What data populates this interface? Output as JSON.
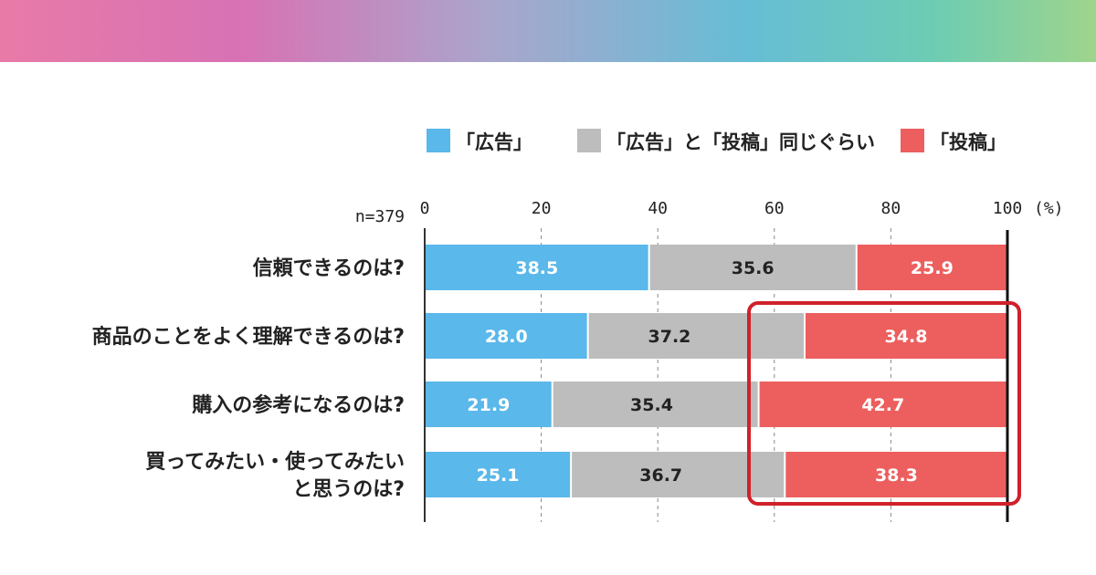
{
  "colors": {
    "ad": "#5ab8ea",
    "same": "#bdbdbd",
    "post": "#ec5f5e",
    "highlight": "#d0212a"
  },
  "legend": [
    "「広告」",
    "「広告」と「投稿」同じぐらい",
    "「投稿」"
  ],
  "chart_data": {
    "type": "bar",
    "orientation": "horizontal",
    "stacked": true,
    "sample_label": "n=379",
    "unit_label": "(%)",
    "xlim": [
      0,
      100
    ],
    "xticks": [
      0,
      20,
      40,
      60,
      80,
      100
    ],
    "categories": [
      [
        "信頼できるのは?"
      ],
      [
        "商品のことをよく理解できるのは?"
      ],
      [
        "購入の参考になるのは?"
      ],
      [
        "買ってみたい・使ってみたい",
        "と思うのは?"
      ]
    ],
    "series": [
      {
        "name": "「広告」",
        "values": [
          38.5,
          28.0,
          21.9,
          25.1
        ],
        "labels": [
          "38.5",
          "28.0",
          "21.9",
          "25.1"
        ]
      },
      {
        "name": "「広告」と「投稿」同じぐらい",
        "values": [
          35.6,
          37.2,
          35.4,
          36.7
        ],
        "labels": [
          "35.6",
          "37.2",
          "35.4",
          "36.7"
        ]
      },
      {
        "name": "「投稿」",
        "values": [
          25.9,
          34.8,
          42.7,
          38.3
        ],
        "labels": [
          "25.9",
          "34.8",
          "42.7",
          "38.3"
        ]
      }
    ],
    "highlight": {
      "rows": [
        1,
        3
      ],
      "x_range": [
        56,
        100
      ]
    },
    "grid": "vertical-dashed",
    "legend_position": "top"
  }
}
